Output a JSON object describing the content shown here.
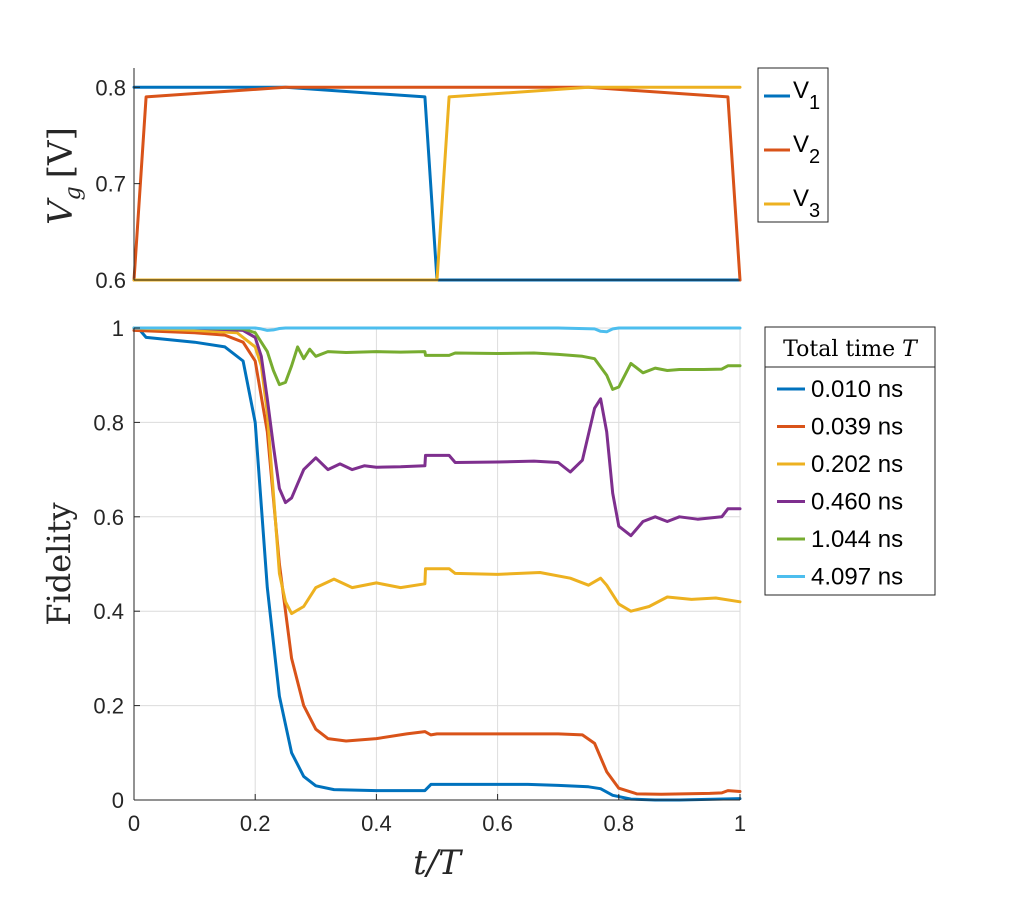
{
  "chart_data": [
    {
      "type": "line",
      "ylabel_main": "V",
      "ylabel_sub": "g",
      "ylabel_unit": "[V]",
      "xlim": [
        0,
        1
      ],
      "ylim": [
        0.6,
        0.82
      ],
      "yticks": [
        0.6,
        0.7,
        0.8
      ],
      "ytick_labels": [
        "0.6",
        "0.7",
        "0.8"
      ],
      "legend_position": "outside-right",
      "series": [
        {
          "name": "V",
          "sub": "1",
          "color": "#0072BD",
          "x": [
            0,
            0.25,
            0.48,
            0.5,
            1.0
          ],
          "y": [
            0.8,
            0.8,
            0.79,
            0.6,
            0.6
          ]
        },
        {
          "name": "V",
          "sub": "2",
          "color": "#D95319",
          "x": [
            0,
            0.02,
            0.25,
            0.5,
            0.75,
            0.98,
            1.0
          ],
          "y": [
            0.6,
            0.79,
            0.8,
            0.8,
            0.8,
            0.79,
            0.6
          ]
        },
        {
          "name": "V",
          "sub": "3",
          "color": "#EDB120",
          "x": [
            0,
            0.48,
            0.5,
            0.52,
            0.75,
            1.0
          ],
          "y": [
            0.6,
            0.6,
            0.6,
            0.79,
            0.8,
            0.8
          ]
        }
      ]
    },
    {
      "type": "line",
      "ylabel": "Fidelity",
      "xlabel": "t/T",
      "xlim": [
        0,
        1
      ],
      "ylim": [
        0,
        1
      ],
      "grid": true,
      "xticks": [
        0,
        0.2,
        0.4,
        0.6,
        0.8,
        1
      ],
      "xtick_labels": [
        "0",
        "0.2",
        "0.4",
        "0.6",
        "0.8",
        "1"
      ],
      "yticks": [
        0,
        0.2,
        0.4,
        0.6,
        0.8,
        1
      ],
      "ytick_labels": [
        "0",
        "0.2",
        "0.4",
        "0.6",
        "0.8",
        "1"
      ],
      "legend_title": "Total time ",
      "legend_title_var": "T",
      "legend_position": "outside-right",
      "series": [
        {
          "name": "0.010 ns",
          "color": "#0072BD",
          "x": [
            0,
            0.01,
            0.02,
            0.1,
            0.15,
            0.18,
            0.2,
            0.22,
            0.24,
            0.26,
            0.28,
            0.3,
            0.33,
            0.4,
            0.48,
            0.49,
            0.55,
            0.6,
            0.65,
            0.7,
            0.75,
            0.77,
            0.79,
            0.82,
            0.86,
            0.9,
            1.0
          ],
          "y": [
            1.0,
            0.995,
            0.98,
            0.97,
            0.96,
            0.93,
            0.8,
            0.45,
            0.22,
            0.1,
            0.05,
            0.03,
            0.022,
            0.02,
            0.02,
            0.033,
            0.033,
            0.033,
            0.033,
            0.031,
            0.028,
            0.024,
            0.01,
            0.002,
            0.0,
            0.0,
            0.003
          ]
        },
        {
          "name": "0.039 ns",
          "color": "#D95319",
          "x": [
            0,
            0.1,
            0.15,
            0.18,
            0.2,
            0.22,
            0.24,
            0.26,
            0.28,
            0.3,
            0.32,
            0.35,
            0.4,
            0.45,
            0.48,
            0.49,
            0.5,
            0.55,
            0.6,
            0.65,
            0.7,
            0.74,
            0.76,
            0.78,
            0.8,
            0.83,
            0.87,
            0.95,
            0.97,
            0.98,
            1.0
          ],
          "y": [
            0.995,
            0.99,
            0.985,
            0.97,
            0.93,
            0.78,
            0.5,
            0.3,
            0.2,
            0.15,
            0.13,
            0.125,
            0.13,
            0.14,
            0.145,
            0.138,
            0.14,
            0.14,
            0.14,
            0.14,
            0.14,
            0.138,
            0.12,
            0.06,
            0.025,
            0.013,
            0.012,
            0.014,
            0.015,
            0.02,
            0.018
          ]
        },
        {
          "name": "0.202 ns",
          "color": "#EDB120",
          "x": [
            0,
            0.1,
            0.17,
            0.2,
            0.21,
            0.22,
            0.23,
            0.24,
            0.25,
            0.26,
            0.28,
            0.3,
            0.33,
            0.36,
            0.4,
            0.44,
            0.48,
            0.481,
            0.52,
            0.53,
            0.6,
            0.67,
            0.72,
            0.75,
            0.77,
            0.78,
            0.8,
            0.82,
            0.85,
            0.88,
            0.92,
            0.96,
            1.0
          ],
          "y": [
            1.0,
            0.995,
            0.99,
            0.96,
            0.92,
            0.82,
            0.65,
            0.48,
            0.42,
            0.395,
            0.41,
            0.45,
            0.468,
            0.45,
            0.46,
            0.45,
            0.458,
            0.49,
            0.49,
            0.48,
            0.478,
            0.482,
            0.47,
            0.455,
            0.47,
            0.455,
            0.415,
            0.4,
            0.41,
            0.43,
            0.425,
            0.428,
            0.42
          ]
        },
        {
          "name": "0.460 ns",
          "color": "#7E2F8E",
          "x": [
            0,
            0.1,
            0.18,
            0.2,
            0.21,
            0.22,
            0.23,
            0.24,
            0.25,
            0.26,
            0.27,
            0.28,
            0.3,
            0.32,
            0.34,
            0.36,
            0.38,
            0.4,
            0.44,
            0.48,
            0.481,
            0.52,
            0.53,
            0.6,
            0.66,
            0.7,
            0.72,
            0.74,
            0.76,
            0.77,
            0.78,
            0.79,
            0.8,
            0.82,
            0.84,
            0.86,
            0.88,
            0.9,
            0.93,
            0.97,
            0.98,
            1.0
          ],
          "y": [
            1.0,
            1.0,
            0.995,
            0.98,
            0.94,
            0.85,
            0.75,
            0.66,
            0.63,
            0.64,
            0.67,
            0.7,
            0.725,
            0.7,
            0.712,
            0.7,
            0.708,
            0.705,
            0.706,
            0.708,
            0.73,
            0.73,
            0.715,
            0.716,
            0.718,
            0.715,
            0.695,
            0.72,
            0.83,
            0.85,
            0.78,
            0.65,
            0.58,
            0.56,
            0.59,
            0.6,
            0.59,
            0.6,
            0.595,
            0.6,
            0.617,
            0.617
          ]
        },
        {
          "name": "1.044 ns",
          "color": "#77AC30",
          "x": [
            0,
            0.1,
            0.18,
            0.2,
            0.22,
            0.23,
            0.24,
            0.25,
            0.26,
            0.27,
            0.28,
            0.29,
            0.3,
            0.32,
            0.35,
            0.4,
            0.44,
            0.48,
            0.481,
            0.52,
            0.53,
            0.6,
            0.66,
            0.7,
            0.74,
            0.76,
            0.78,
            0.79,
            0.8,
            0.82,
            0.84,
            0.86,
            0.88,
            0.9,
            0.94,
            0.97,
            0.98,
            1.0
          ],
          "y": [
            1.0,
            1.0,
            0.998,
            0.99,
            0.95,
            0.91,
            0.88,
            0.885,
            0.92,
            0.96,
            0.935,
            0.955,
            0.94,
            0.95,
            0.948,
            0.95,
            0.949,
            0.95,
            0.942,
            0.942,
            0.947,
            0.946,
            0.947,
            0.944,
            0.94,
            0.935,
            0.9,
            0.87,
            0.875,
            0.925,
            0.905,
            0.915,
            0.91,
            0.912,
            0.912,
            0.913,
            0.92,
            0.92
          ]
        },
        {
          "name": "4.097 ns",
          "color": "#4DBEEE",
          "x": [
            0,
            0.1,
            0.2,
            0.21,
            0.22,
            0.23,
            0.24,
            0.25,
            0.3,
            0.4,
            0.5,
            0.6,
            0.7,
            0.76,
            0.77,
            0.78,
            0.79,
            0.8,
            0.9,
            1.0
          ],
          "y": [
            1.0,
            1.0,
            1.0,
            0.998,
            0.995,
            0.996,
            0.999,
            1.0,
            1.0,
            1.0,
            1.0,
            1.0,
            1.0,
            0.998,
            0.993,
            0.992,
            0.998,
            1.0,
            1.0,
            1.0
          ]
        }
      ]
    }
  ]
}
